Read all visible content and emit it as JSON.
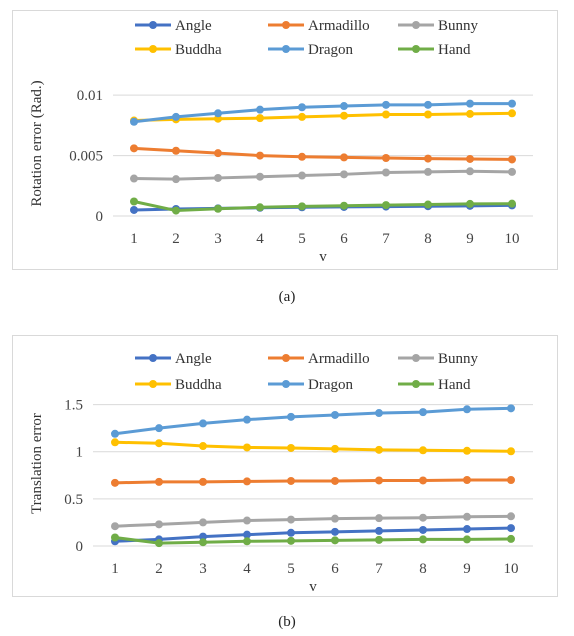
{
  "captions": {
    "a": "(a)",
    "b": "(b)"
  },
  "chart_data": [
    {
      "type": "line",
      "xlabel": "v",
      "ylabel": "Rotation error (Rad.)",
      "x": [
        1,
        2,
        3,
        4,
        5,
        6,
        7,
        8,
        9,
        10
      ],
      "ylim": [
        0,
        0.012
      ],
      "yticks": [
        0,
        0.005,
        0.01
      ],
      "ytick_labels": [
        "0",
        "0.005",
        "0.01"
      ],
      "grid": true,
      "legend": "top",
      "series": [
        {
          "name": "Angle",
          "color": "#4472C4",
          "values": [
            0.0005,
            0.00058,
            0.00063,
            0.00068,
            0.00072,
            0.00075,
            0.00078,
            0.00081,
            0.00084,
            0.00088
          ]
        },
        {
          "name": "Armadillo",
          "color": "#ED7D31",
          "values": [
            0.0056,
            0.0054,
            0.0052,
            0.005,
            0.0049,
            0.00485,
            0.0048,
            0.00475,
            0.00472,
            0.00468
          ]
        },
        {
          "name": "Bunny",
          "color": "#A5A5A5",
          "values": [
            0.0031,
            0.00305,
            0.00315,
            0.00325,
            0.00335,
            0.00345,
            0.0036,
            0.00365,
            0.0037,
            0.00365
          ]
        },
        {
          "name": "Buddha",
          "color": "#FFC000",
          "values": [
            0.0079,
            0.008,
            0.00805,
            0.0081,
            0.0082,
            0.0083,
            0.0084,
            0.0084,
            0.00845,
            0.0085
          ]
        },
        {
          "name": "Dragon",
          "color": "#5B9BD5",
          "values": [
            0.0078,
            0.0082,
            0.0085,
            0.0088,
            0.009,
            0.0091,
            0.0092,
            0.0092,
            0.0093,
            0.0093
          ]
        },
        {
          "name": "Hand",
          "color": "#70AD47",
          "values": [
            0.0012,
            0.00045,
            0.0006,
            0.00072,
            0.0008,
            0.00085,
            0.0009,
            0.00095,
            0.001,
            0.00102
          ]
        }
      ]
    },
    {
      "type": "line",
      "xlabel": "v",
      "ylabel": "Translation error",
      "x": [
        1,
        2,
        3,
        4,
        5,
        6,
        7,
        8,
        9,
        10
      ],
      "ylim": [
        0,
        1.75
      ],
      "yticks": [
        0,
        0.5,
        1,
        1.5
      ],
      "ytick_labels": [
        "0",
        "0.5",
        "1",
        "1.5"
      ],
      "grid": true,
      "legend": "top",
      "series": [
        {
          "name": "Angle",
          "color": "#4472C4",
          "values": [
            0.05,
            0.07,
            0.1,
            0.12,
            0.14,
            0.15,
            0.16,
            0.17,
            0.18,
            0.19
          ]
        },
        {
          "name": "Armadillo",
          "color": "#ED7D31",
          "values": [
            0.67,
            0.68,
            0.68,
            0.685,
            0.69,
            0.69,
            0.695,
            0.695,
            0.7,
            0.7
          ]
        },
        {
          "name": "Bunny",
          "color": "#A5A5A5",
          "values": [
            0.21,
            0.23,
            0.25,
            0.27,
            0.28,
            0.29,
            0.295,
            0.3,
            0.31,
            0.315
          ]
        },
        {
          "name": "Buddha",
          "color": "#FFC000",
          "values": [
            1.1,
            1.09,
            1.06,
            1.045,
            1.04,
            1.03,
            1.02,
            1.015,
            1.01,
            1.005
          ]
        },
        {
          "name": "Dragon",
          "color": "#5B9BD5",
          "values": [
            1.19,
            1.25,
            1.3,
            1.34,
            1.37,
            1.39,
            1.41,
            1.42,
            1.45,
            1.46
          ]
        },
        {
          "name": "Hand",
          "color": "#70AD47",
          "values": [
            0.09,
            0.03,
            0.04,
            0.05,
            0.055,
            0.06,
            0.065,
            0.07,
            0.07,
            0.075
          ]
        }
      ]
    }
  ]
}
